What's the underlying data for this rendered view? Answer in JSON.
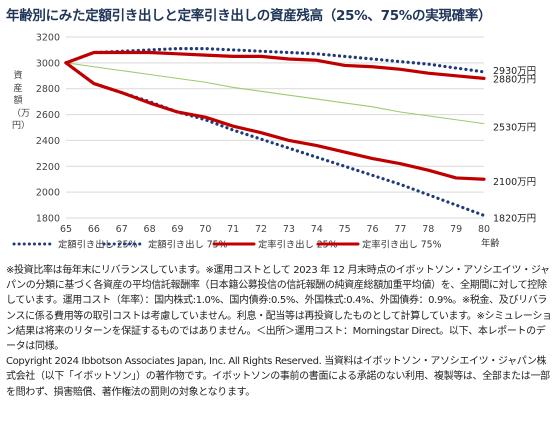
{
  "title": "年齢別にみた定額引き出しと定率引き出しの資産残高（25%、75%の実現確率）",
  "chart_data": {
    "type": "line",
    "x": [
      65,
      66,
      67,
      68,
      69,
      70,
      71,
      72,
      73,
      74,
      75,
      76,
      77,
      78,
      79,
      80
    ],
    "xlabel": "年齢",
    "ylabel": "資産額（万円）",
    "ylim": [
      1800,
      3200
    ],
    "yticks": [
      1800,
      2000,
      2200,
      2400,
      2600,
      2800,
      3000,
      3200
    ],
    "xticks": [
      65,
      66,
      67,
      68,
      69,
      70,
      71,
      72,
      73,
      74,
      75,
      76,
      77,
      78,
      79,
      80
    ],
    "grid": true,
    "legend_position": "bottom",
    "series": [
      {
        "name": "定額引き出し 25%",
        "style": "dotted",
        "color": "#1f3a7a",
        "values": [
          3000,
          2840,
          2770,
          2700,
          2620,
          2560,
          2480,
          2410,
          2340,
          2270,
          2200,
          2130,
          2060,
          1980,
          1900,
          1820
        ],
        "end_label": "1820万円"
      },
      {
        "name": "定額引き出し 75%",
        "style": "dotted",
        "color": "#1f3a7a",
        "values": [
          3000,
          3080,
          3090,
          3100,
          3110,
          3110,
          3100,
          3090,
          3080,
          3070,
          3050,
          3030,
          3010,
          2990,
          2960,
          2930
        ],
        "end_label": "2930万円"
      },
      {
        "name": "定率引き出し 25%",
        "style": "solid",
        "color": "#c00000",
        "values": [
          3000,
          2840,
          2770,
          2690,
          2620,
          2580,
          2510,
          2460,
          2400,
          2360,
          2310,
          2260,
          2220,
          2170,
          2110,
          2100
        ],
        "end_label": "2100万円"
      },
      {
        "name": "定率引き出し 75%",
        "style": "solid",
        "color": "#c00000",
        "values": [
          3000,
          3080,
          3080,
          3080,
          3070,
          3060,
          3050,
          3050,
          3030,
          3020,
          2980,
          2970,
          2950,
          2920,
          2900,
          2880
        ],
        "end_label": "2880万円"
      },
      {
        "style": "thin",
        "color": "#9acd6a",
        "values": [
          3000,
          2970,
          2940,
          2910,
          2880,
          2850,
          2810,
          2780,
          2750,
          2720,
          2690,
          2660,
          2620,
          2590,
          2560,
          2530
        ],
        "end_label": "2530万円"
      }
    ]
  },
  "notes": [
    "※投資比率は毎年末にリバランスしています。※運用コストとして 2023 年 12 月末時点のイボットソン・アソシエイツ・ジャパンの分類に基づく各資産の平均信託報酬率（日本籍公募投信の信託報酬の純資産総額加重平均値）を、全期間に対して控除しています。運用コスト（年率）：国内株式:1.0%、国内債券:0.5%、外国株式:0.4%、外国債券：0.9%。※税金、及びリバランスに係る費用等の取引コストは考慮していません。利息・配当等は再投資したものとして計算しています。※シミュレーション結果は将来のリターンを保証するものではありません。＜出所＞運用コスト：Morningstar Direct。以下、本レポートのデータは同様。",
    "Copyright 2024 Ibbotson Associates Japan, Inc. All Rights Reserved. 当資料はイボットソン・アソシエイツ・ジャパン株式会社（以下「イボットソン」）の著作物です。イボットソンの事前の書面による承諾のない利用、複製等は、全部または一部を問わず、損害賠償、著作権法の罰則の対象となります。"
  ]
}
